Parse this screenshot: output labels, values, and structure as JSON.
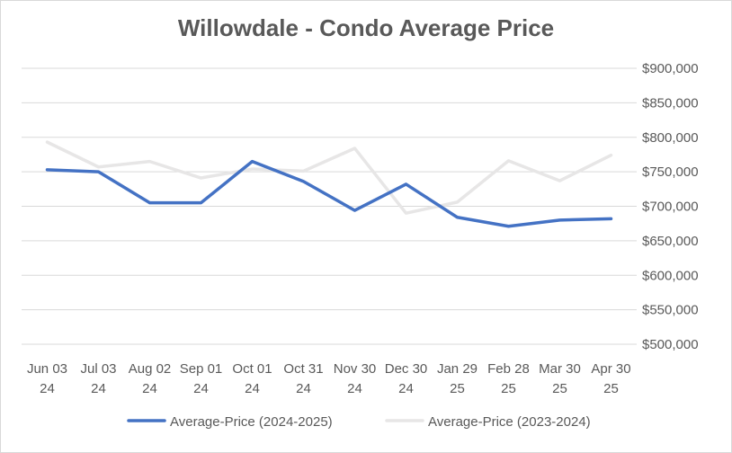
{
  "chart_data": {
    "type": "line",
    "title": "Willowdale - Condo Average Price",
    "xlabel": "",
    "ylabel": "",
    "categories": [
      [
        "Jun 03",
        "24"
      ],
      [
        "Jul 03",
        "24"
      ],
      [
        "Aug 02",
        "24"
      ],
      [
        "Sep 01",
        "24"
      ],
      [
        "Oct 01",
        "24"
      ],
      [
        "Oct 31",
        "24"
      ],
      [
        "Nov 30",
        "24"
      ],
      [
        "Dec 30",
        "24"
      ],
      [
        "Jan 29",
        "25"
      ],
      [
        "Feb 28",
        "25"
      ],
      [
        "Mar 30",
        "25"
      ],
      [
        "Apr 30",
        "25"
      ]
    ],
    "ylim": [
      500000,
      900000
    ],
    "yticks": [
      500000,
      550000,
      600000,
      650000,
      700000,
      750000,
      800000,
      850000,
      900000
    ],
    "ytick_labels": [
      "$500,000",
      "$550,000",
      "$600,000",
      "$650,000",
      "$700,000",
      "$750,000",
      "$800,000",
      "$850,000",
      "$900,000"
    ],
    "grid": true,
    "legend_position": "bottom",
    "series": [
      {
        "name": "Average-Price (2023-2024)",
        "color": "#e7e6e6",
        "values": [
          793000,
          757000,
          765000,
          741000,
          754000,
          751000,
          784000,
          690000,
          706000,
          766000,
          737000,
          774000
        ]
      },
      {
        "name": "Average-Price (2024-2025)",
        "color": "#4472c4",
        "values": [
          753000,
          750000,
          705000,
          705000,
          765000,
          736000,
          694000,
          732000,
          684000,
          671000,
          680000,
          682000
        ]
      }
    ]
  }
}
